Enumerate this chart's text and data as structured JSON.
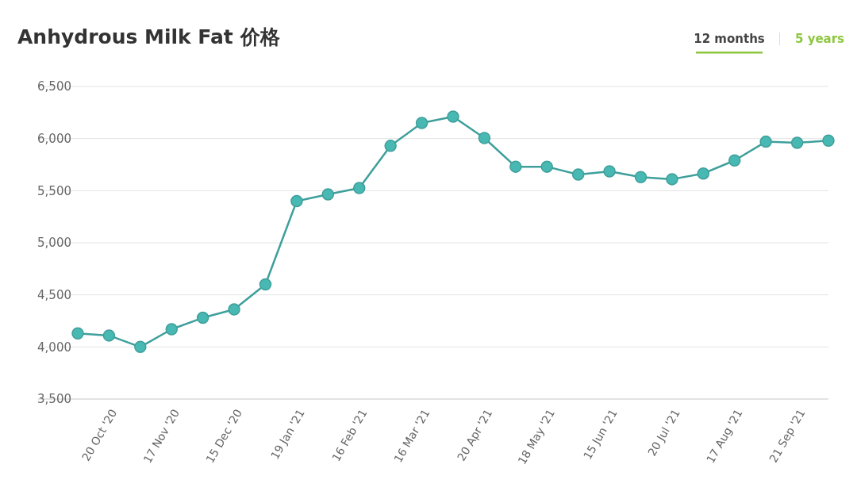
{
  "chart_data": {
    "type": "line",
    "title": "Anhydrous Milk Fat 价格",
    "annotations": [
      "12 months",
      "5 years"
    ],
    "categories": [
      null,
      "20 Oct '20",
      null,
      "17 Nov '20",
      null,
      "15 Dec '20",
      null,
      "19 Jan '21",
      null,
      "16 Feb '21",
      null,
      "16 Mar '21",
      null,
      "20 Apr '21",
      null,
      "18 May '21",
      null,
      "15 Jun '21",
      null,
      "20 Jul '21",
      null,
      "17 Aug '21",
      null,
      "21 Sep '21",
      null
    ],
    "series": [
      {
        "color": "#3e9f9b",
        "values": [
          4130,
          4110,
          4000,
          4170,
          4280,
          4360,
          4600,
          5400,
          5465,
          5525,
          5930,
          6150,
          6210,
          6005,
          5730,
          5730,
          5655,
          5685,
          5630,
          5610,
          5665,
          5790,
          5970,
          5960,
          5980
        ]
      }
    ],
    "ylim": [
      3500,
      6500
    ],
    "yticks": [
      {
        "value": 3500,
        "label": "3,500"
      },
      {
        "value": 4000,
        "label": "4,000"
      },
      {
        "value": 4500,
        "label": "4,500"
      },
      {
        "value": 5000,
        "label": "5,000"
      },
      {
        "value": 5500,
        "label": "5,500"
      },
      {
        "value": 6000,
        "label": "6,000"
      },
      {
        "value": 6500,
        "label": "6,500"
      }
    ],
    "grid": "y",
    "marker": "circle"
  }
}
